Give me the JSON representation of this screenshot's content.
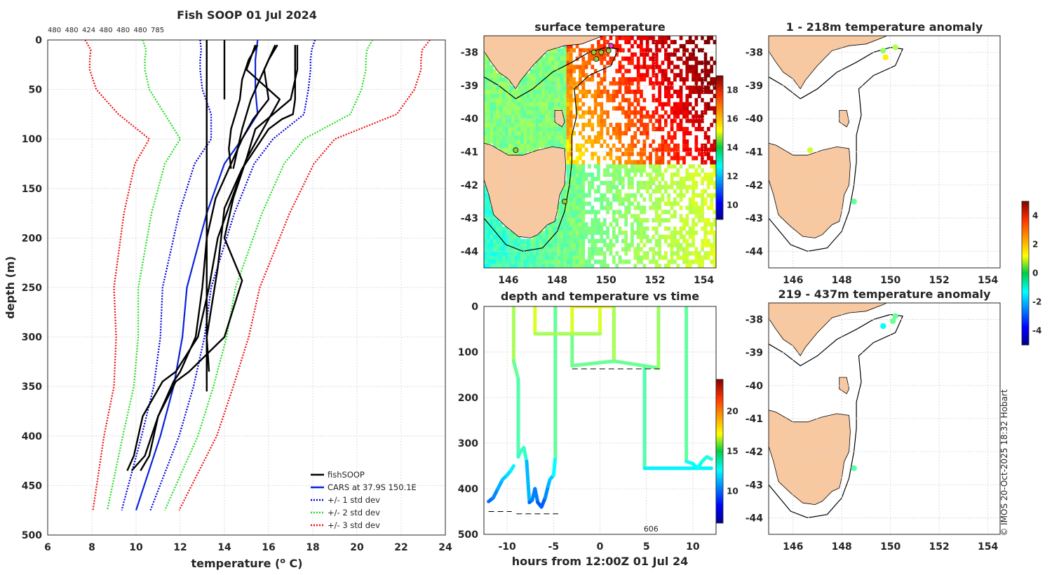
{
  "footer": {
    "credit": "© IMOS 20-Oct-2025 18:32 Hobart"
  },
  "chart_data": [
    {
      "type": "line",
      "name": "profiles",
      "title": "Fish SOOP 01 Jul 2024",
      "xlabel": "temperature (",
      "xlabel_sup": "o",
      "xlabel_tail": " C)",
      "ylabel": "depth (m)",
      "xlim": [
        6,
        24
      ],
      "ylim": [
        0,
        500
      ],
      "xticks": [
        6,
        8,
        10,
        12,
        14,
        16,
        18,
        20,
        22,
        24
      ],
      "yticks": [
        0,
        50,
        100,
        150,
        200,
        250,
        300,
        350,
        400,
        450,
        500
      ],
      "top_counts": [
        "480",
        "480",
        "424",
        "480",
        "480",
        "480",
        "785"
      ],
      "legend": [
        "fishSOOP",
        "CARS at 37.9S 150.1E",
        "+/- 1 std dev",
        "+/- 2 std dev",
        "+/- 3 std dev"
      ],
      "depths": [
        0,
        10,
        20,
        30,
        50,
        75,
        100,
        125,
        150,
        175,
        200,
        250,
        300,
        350,
        400,
        475
      ],
      "cars_mean": [
        15.5,
        15.45,
        15.4,
        15.4,
        15.4,
        15.5,
        14.8,
        14.0,
        13.6,
        13.2,
        12.9,
        12.3,
        12.1,
        11.7,
        11.1,
        10.0
      ],
      "std_dev": [
        2.6,
        2.5,
        2.5,
        2.5,
        2.4,
        2.1,
        1.4,
        1.35,
        1.3,
        1.25,
        1.2,
        1.1,
        1.0,
        0.9,
        0.85,
        0.65
      ],
      "fishsoop_profiles": [
        {
          "depth": [
            0,
            355
          ],
          "temp": [
            13.2,
            13.2
          ]
        },
        {
          "depth": [
            0,
            345
          ],
          "temp": [
            13.2,
            13.2
          ]
        },
        {
          "depth": [
            0,
            60
          ],
          "temp": [
            14.0,
            14.0
          ]
        },
        {
          "depth": [
            5,
            20,
            40,
            60,
            75,
            90,
            110,
            130
          ],
          "temp": [
            15.5,
            15.1,
            14.8,
            14.7,
            14.5,
            14.3,
            14.2,
            14.3
          ]
        },
        {
          "depth": [
            5,
            20,
            40,
            60,
            75,
            90,
            110,
            130
          ],
          "temp": [
            16.4,
            16.0,
            15.6,
            15.2,
            15.0,
            14.8,
            14.6,
            14.4
          ]
        },
        {
          "depth": [
            5,
            30,
            60,
            75,
            80,
            90,
            110,
            130,
            170,
            230,
            300,
            335
          ],
          "temp": [
            17.2,
            17.2,
            17.2,
            17.1,
            16.6,
            16.0,
            15.4,
            14.8,
            14.0,
            13.7,
            13.2,
            13.3
          ]
        },
        {
          "depth": [
            5,
            30,
            60,
            75,
            90,
            120,
            160,
            200,
            243,
            300,
            335,
            345,
            380,
            420,
            435
          ],
          "temp": [
            17.3,
            17.3,
            17.0,
            16.2,
            15.4,
            15.0,
            14.4,
            14.0,
            14.8,
            14.0,
            12.4,
            11.8,
            11.0,
            10.4,
            9.8
          ]
        },
        {
          "depth": [
            5,
            30,
            60,
            80,
            100,
            120,
            150,
            200,
            250,
            300,
            335,
            345,
            380,
            420,
            435
          ],
          "temp": [
            15.4,
            15.0,
            16.5,
            16.0,
            15.5,
            15.0,
            14.5,
            13.7,
            13.3,
            12.8,
            11.8,
            11.2,
            10.3,
            9.9,
            9.6
          ]
        },
        {
          "depth": [
            5,
            30,
            60,
            80,
            100,
            130,
            160,
            200,
            250,
            300,
            335,
            345,
            380,
            420,
            435
          ],
          "temp": [
            16.3,
            15.8,
            16.0,
            15.3,
            14.8,
            14.2,
            13.6,
            13.2,
            13.0,
            12.7,
            12.0,
            11.7,
            11.0,
            10.6,
            10.2
          ]
        }
      ]
    },
    {
      "type": "heatmap",
      "name": "surface-temperature-map",
      "title": "surface temperature",
      "xlim": [
        145,
        154.5
      ],
      "ylim": [
        -44.5,
        -37.5
      ],
      "xticks": [
        146,
        148,
        150,
        152,
        154
      ],
      "yticks": [
        -38,
        -39,
        -40,
        -41,
        -42,
        -43,
        -44
      ],
      "colorbar_ticks": [
        10,
        12,
        14,
        16,
        18
      ],
      "colorbar_range": [
        9,
        19
      ],
      "stations": [
        {
          "lon": 149.5,
          "lat": -38.0
        },
        {
          "lon": 149.8,
          "lat": -38.0
        },
        {
          "lon": 150.1,
          "lat": -37.95
        },
        {
          "lon": 150.2,
          "lat": -37.8
        },
        {
          "lon": 149.6,
          "lat": -38.2
        },
        {
          "lon": 146.3,
          "lat": -40.95
        },
        {
          "lon": 148.3,
          "lat": -42.5
        }
      ]
    },
    {
      "type": "scatter",
      "name": "time-depth-section",
      "title": "depth and temperature vs time",
      "xlabel": "hours from 12:00Z 01 Jul 24",
      "xlim": [
        -12.5,
        12.5
      ],
      "ylim": [
        0,
        500
      ],
      "xticks": [
        -10,
        -5,
        0,
        5,
        10
      ],
      "yticks": [
        0,
        100,
        200,
        300,
        400,
        500
      ],
      "colorbar_ticks": [
        10,
        15,
        20
      ],
      "colorbar_range": [
        6,
        24
      ],
      "annotation": "606",
      "casts": [
        {
          "t": [
            -9.3,
            -9.3,
            -8.8,
            -8.8,
            -8.6,
            -8.2,
            -7.9,
            -7.6,
            -7.3,
            -7.0,
            -6.7,
            -6.3,
            -5.9,
            -5.6,
            -5.4,
            -5.0,
            -4.8
          ],
          "d": [
            0,
            120,
            160,
            330,
            320,
            310,
            340,
            430,
            425,
            400,
            430,
            440,
            420,
            395,
            380,
            370,
            330
          ]
        },
        {
          "t": [
            -12.0,
            -11.5,
            -11.0,
            -10.5,
            -10.0,
            -9.6,
            -9.3
          ],
          "d": [
            428,
            420,
            400,
            380,
            370,
            360,
            350
          ]
        },
        {
          "t": [
            -4.8,
            -4.8
          ],
          "d": [
            330,
            0
          ]
        },
        {
          "t": [
            -7.0,
            -7.0,
            -3.0,
            -3.0
          ],
          "d": [
            0,
            60,
            60,
            0
          ]
        },
        {
          "t": [
            -3.0,
            -3.0,
            1.5,
            1.5,
            -3.0
          ],
          "d": [
            60,
            130,
            120,
            0,
            0
          ]
        },
        {
          "t": [
            0,
            0,
            -3.0
          ],
          "d": [
            0,
            60,
            60
          ]
        },
        {
          "t": [
            1.5,
            1.5,
            6.3,
            6.3
          ],
          "d": [
            0,
            120,
            135,
            0
          ]
        },
        {
          "t": [
            4.8,
            4.8,
            12.0
          ],
          "d": [
            135,
            355,
            355
          ]
        },
        {
          "t": [
            9.3,
            9.3,
            10.0,
            10.5,
            11.0,
            11.5,
            12.0
          ],
          "d": [
            0,
            340,
            345,
            355,
            340,
            330,
            335
          ]
        }
      ],
      "seafloor": [
        {
          "t": [
            -12.0,
            -9.5
          ],
          "d": [
            450,
            450
          ]
        },
        {
          "t": [
            -9.0,
            -4.5
          ],
          "d": [
            455,
            455
          ]
        },
        {
          "t": [
            -3.0,
            6.5
          ],
          "d": [
            137,
            137
          ]
        }
      ]
    },
    {
      "type": "scatter",
      "name": "anomaly-shallow",
      "title": "1 - 218m temperature anomaly",
      "xlim": [
        145,
        154.5
      ],
      "ylim": [
        -44.5,
        -37.5
      ],
      "xticks": [
        146,
        148,
        150,
        152,
        154
      ],
      "yticks": [
        -38,
        -39,
        -40,
        -41,
        -42,
        -43,
        -44
      ],
      "points": [
        {
          "lon": 149.7,
          "lat": -37.95,
          "anom": 0.2
        },
        {
          "lon": 150.2,
          "lat": -37.85,
          "anom": 0.5
        },
        {
          "lon": 149.8,
          "lat": -38.15,
          "anom": 1.4
        },
        {
          "lon": 146.7,
          "lat": -40.95,
          "anom": 0.8
        },
        {
          "lon": 148.5,
          "lat": -42.5,
          "anom": -0.3
        }
      ]
    },
    {
      "type": "scatter",
      "name": "anomaly-deep",
      "title": "219 - 437m temperature anomaly",
      "xlim": [
        145,
        154.5
      ],
      "ylim": [
        -44.5,
        -37.5
      ],
      "xticks": [
        146,
        148,
        150,
        152,
        154
      ],
      "yticks": [
        -38,
        -39,
        -40,
        -41,
        -42,
        -43,
        -44
      ],
      "colorbar_ticks": [
        -4,
        -2,
        0,
        2,
        4
      ],
      "colorbar_range": [
        -5,
        5
      ],
      "points": [
        {
          "lon": 150.2,
          "lat": -37.9,
          "anom": -0.2
        },
        {
          "lon": 150.1,
          "lat": -38.05,
          "anom": -0.2
        },
        {
          "lon": 149.7,
          "lat": -38.2,
          "anom": -1.2
        },
        {
          "lon": 148.5,
          "lat": -42.5,
          "anom": -0.4
        }
      ]
    }
  ]
}
